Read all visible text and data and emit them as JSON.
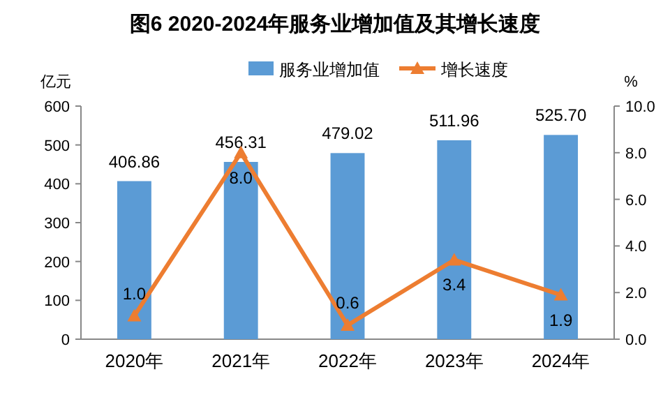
{
  "chart_data": {
    "type": "bar",
    "title": "图6  2020-2024年服务业增加值及其增长速度",
    "ylabel": "亿元",
    "y2label": "%",
    "categories": [
      "2020年",
      "2021年",
      "2022年",
      "2023年",
      "2024年"
    ],
    "series": [
      {
        "name": "服务业增加值",
        "color": "#5b9bd5",
        "values": [
          406.86,
          456.31,
          479.02,
          511.96,
          525.7
        ],
        "value_labels": [
          "406.86",
          "456.31",
          "479.02",
          "511.96",
          "525.70"
        ]
      },
      {
        "name": "增长速度",
        "type": "line",
        "axis": "y2",
        "color": "#ed7d31",
        "values": [
          1.0,
          8.0,
          0.6,
          3.4,
          1.9
        ],
        "value_labels": [
          "1.0",
          "8.0",
          "0.6",
          "3.4",
          "1.9"
        ]
      }
    ],
    "ylim": [
      0,
      600
    ],
    "yticks": [
      0,
      100,
      200,
      300,
      400,
      500,
      600
    ],
    "y2lim": [
      0,
      10
    ],
    "y2ticks": [
      {
        "value": 0,
        "label": "0.0"
      },
      {
        "value": 2,
        "label": "2.0"
      },
      {
        "value": 4,
        "label": "4.0"
      },
      {
        "value": 6,
        "label": "6.0"
      },
      {
        "value": 8,
        "label": "8.0"
      },
      {
        "value": 10,
        "label": "10.0"
      }
    ],
    "marker": "triangle",
    "legend": "top"
  }
}
